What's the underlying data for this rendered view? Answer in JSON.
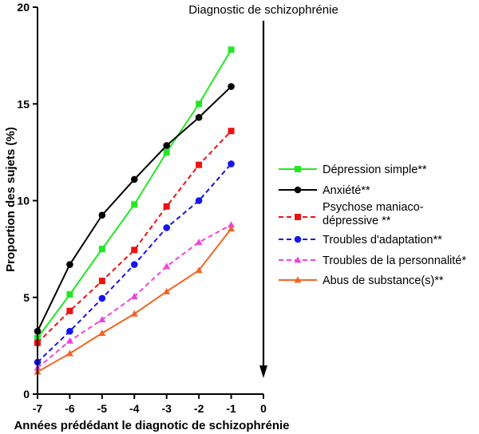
{
  "chart_data": {
    "type": "line",
    "xlabel": "Années prédédant le diagnotic de schizophrénie",
    "ylabel": "Proportion des sujets (%)",
    "xlim": [
      -7,
      0
    ],
    "ylim": [
      0,
      20
    ],
    "x_ticks": [
      "-7",
      "-6",
      "-5",
      "-4",
      "-3",
      "-2",
      "-1",
      "0"
    ],
    "y_ticks": [
      "0",
      "5",
      "10",
      "15",
      "20"
    ],
    "grid": false,
    "legend_position": "right",
    "annotation": {
      "text": "Diagnostic de schizophrénie",
      "x": 0
    },
    "x": [
      -7,
      -6,
      -5,
      -4,
      -3,
      -2,
      -1
    ],
    "series": [
      {
        "name": "Dépression simple**",
        "color": "#22e822",
        "dash": "solid",
        "marker": "square",
        "values": [
          2.9,
          5.15,
          7.5,
          9.8,
          12.5,
          15.0,
          17.8
        ]
      },
      {
        "name": "Anxiété**",
        "color": "#000000",
        "dash": "solid",
        "marker": "circle",
        "values": [
          3.25,
          6.7,
          9.25,
          11.1,
          12.85,
          14.3,
          15.9
        ]
      },
      {
        "name": "Psychose maniaco-dépressive **",
        "color": "#ee1111",
        "dash": "dashed",
        "marker": "square",
        "values": [
          2.65,
          4.3,
          5.85,
          7.45,
          9.7,
          11.85,
          13.6
        ]
      },
      {
        "name": "Troubles d'adaptation**",
        "color": "#1515ee",
        "dash": "dashed",
        "marker": "circle",
        "values": [
          1.65,
          3.25,
          4.95,
          6.7,
          8.6,
          10.0,
          11.9
        ]
      },
      {
        "name": "Troubles de la personnalité*",
        "color": "#ee44dd",
        "dash": "dashed",
        "marker": "triangle",
        "values": [
          1.35,
          2.75,
          3.85,
          5.05,
          6.6,
          7.85,
          8.75
        ]
      },
      {
        "name": "Abus de substance(s)**",
        "color": "#f26522",
        "dash": "solid",
        "marker": "triangle",
        "values": [
          1.15,
          2.1,
          3.15,
          4.15,
          5.3,
          6.4,
          8.55
        ]
      }
    ]
  }
}
